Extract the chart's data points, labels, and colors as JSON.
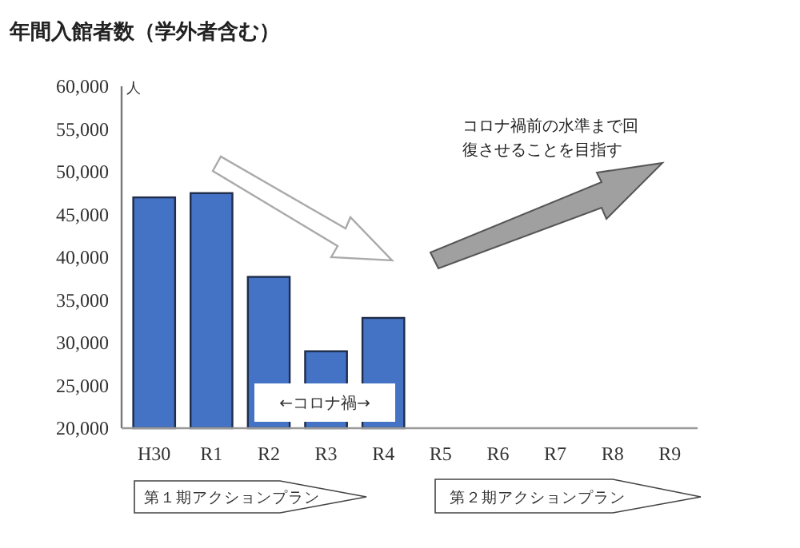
{
  "chart_data": {
    "type": "bar",
    "title": "年間入館者数（学外者含む）",
    "ylabel": "人",
    "categories": [
      "H30",
      "R1",
      "R2",
      "R3",
      "R4",
      "R5",
      "R6",
      "R7",
      "R8",
      "R9"
    ],
    "values": [
      47000,
      47500,
      37700,
      29000,
      32900,
      null,
      null,
      null,
      null,
      null
    ],
    "color": "#4472c4",
    "ylim": [
      20000,
      60000
    ],
    "yticks": [
      {
        "value": 20000,
        "label": "20,000"
      },
      {
        "value": 25000,
        "label": "25,000"
      },
      {
        "value": 30000,
        "label": "30,000"
      },
      {
        "value": 35000,
        "label": "35,000"
      },
      {
        "value": 40000,
        "label": "40,000"
      },
      {
        "value": 45000,
        "label": "45,000"
      },
      {
        "value": 50000,
        "label": "50,000"
      },
      {
        "value": 55000,
        "label": "55,000"
      },
      {
        "value": 60000,
        "label": "60,000"
      }
    ],
    "grid": false,
    "annotations": [
      "コロナ禍前の水準まで回復させることを目指す",
      "←コロナ禍→",
      "第１期アクションプラン",
      "第２期アクションプラン"
    ]
  }
}
